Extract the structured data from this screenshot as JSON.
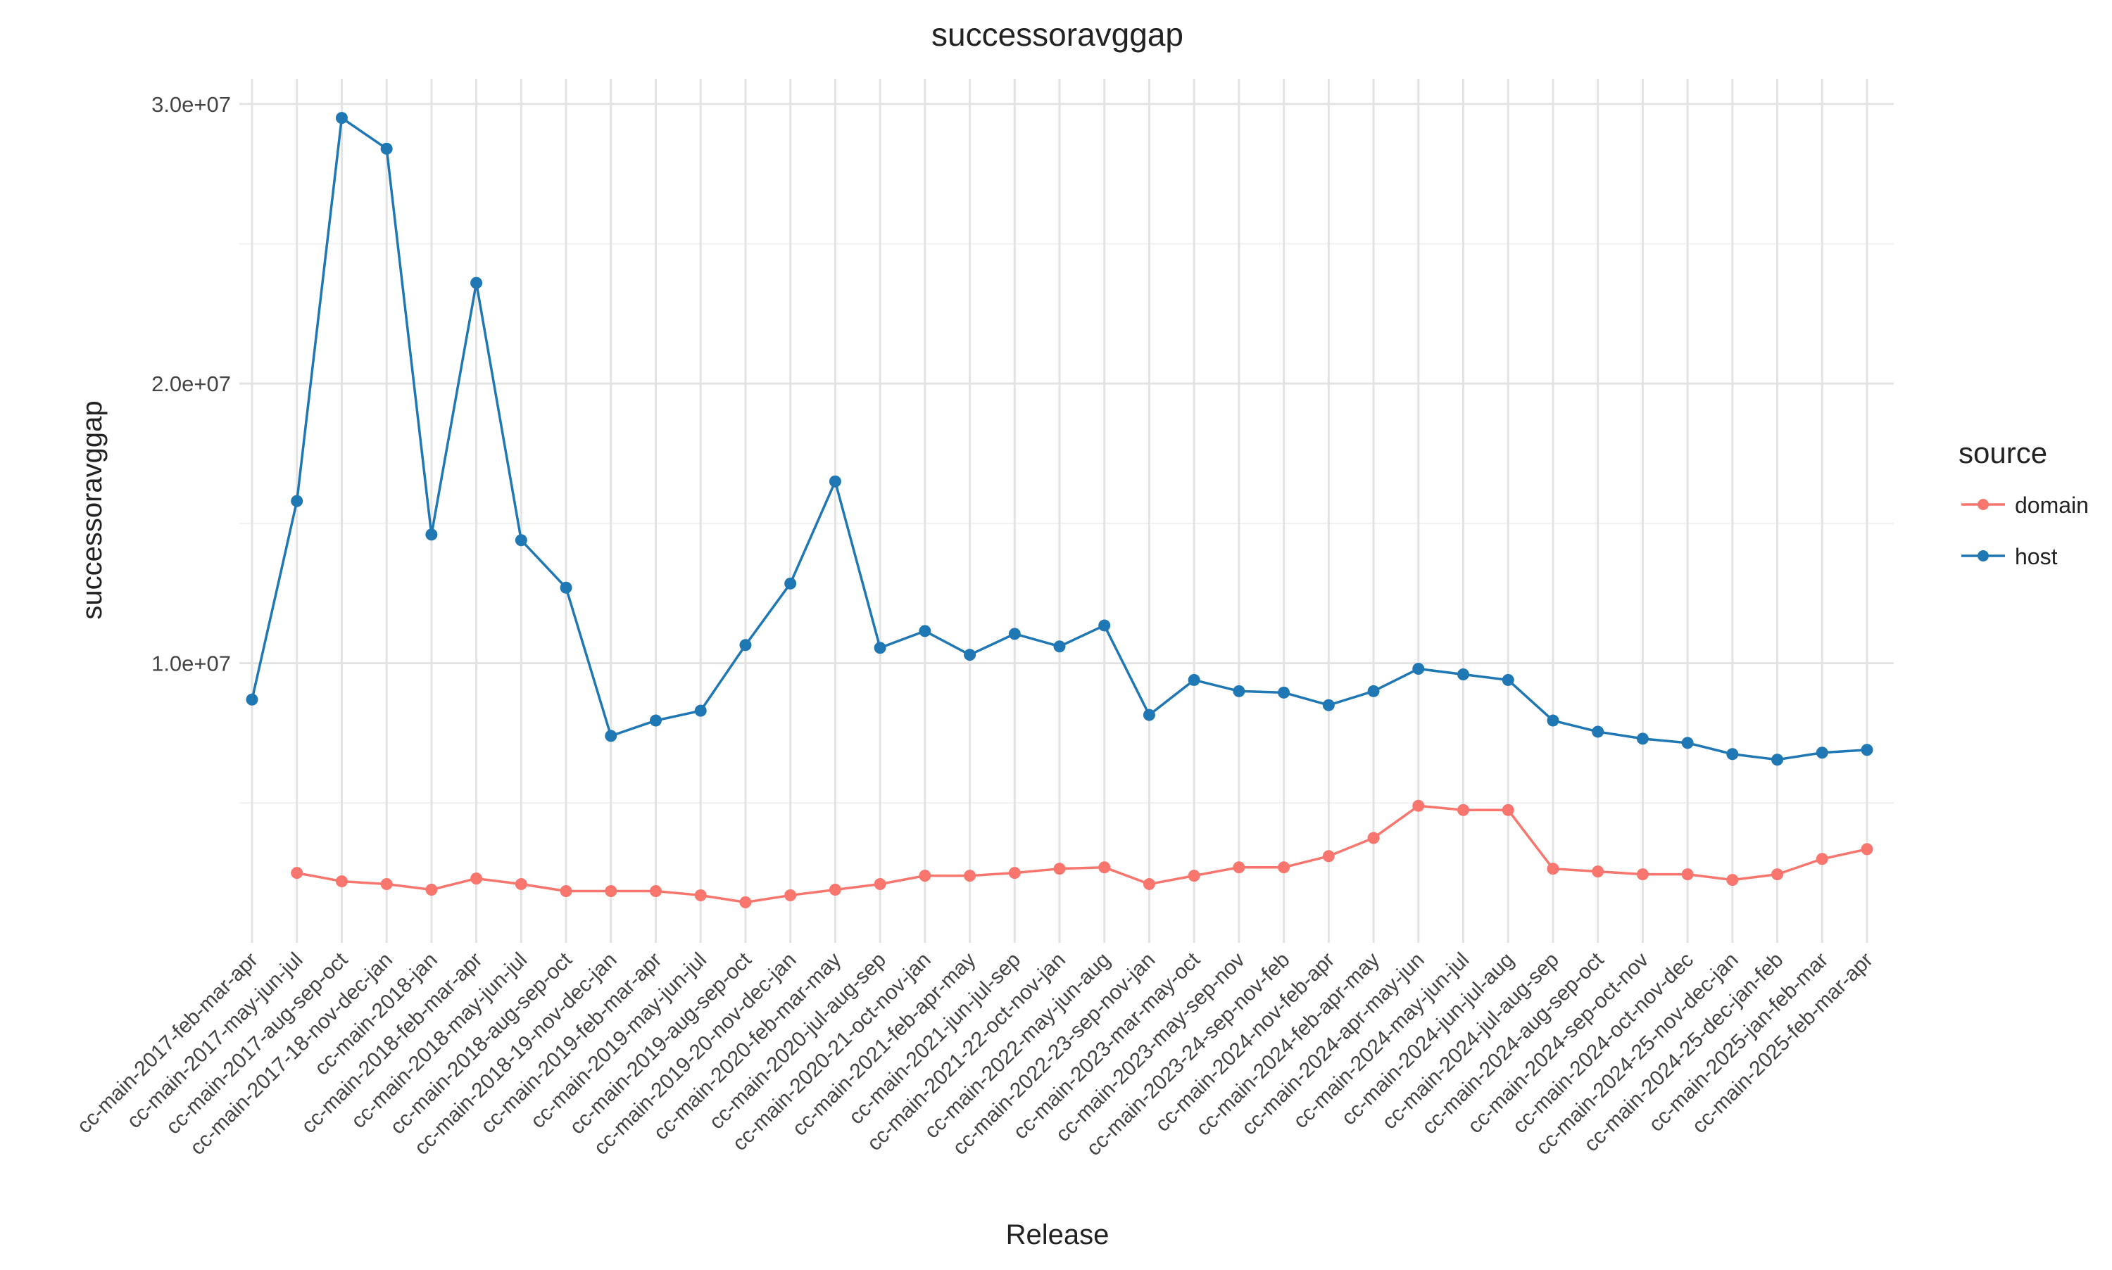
{
  "chart_data": {
    "type": "line",
    "title": "successoravggap",
    "xlabel": "Release",
    "ylabel": "successoravggap",
    "ylim": [
      0,
      30900000
    ],
    "yticks": [
      10000000,
      20000000,
      30000000
    ],
    "ytick_labels": [
      "1.0e+07",
      "2.0e+07",
      "3.0e+07"
    ],
    "grid": true,
    "legend": {
      "title": "source",
      "position": "right",
      "entries": [
        "domain",
        "host"
      ]
    },
    "categories": [
      "cc-main-2017-feb-mar-apr",
      "cc-main-2017-may-jun-jul",
      "cc-main-2017-aug-sep-oct",
      "cc-main-2017-18-nov-dec-jan",
      "cc-main-2018-jan",
      "cc-main-2018-feb-mar-apr",
      "cc-main-2018-may-jun-jul",
      "cc-main-2018-aug-sep-oct",
      "cc-main-2018-19-nov-dec-jan",
      "cc-main-2019-feb-mar-apr",
      "cc-main-2019-may-jun-jul",
      "cc-main-2019-aug-sep-oct",
      "cc-main-2019-20-nov-dec-jan",
      "cc-main-2020-feb-mar-may",
      "cc-main-2020-jul-aug-sep",
      "cc-main-2020-21-oct-nov-jan",
      "cc-main-2021-feb-apr-may",
      "cc-main-2021-jun-jul-sep",
      "cc-main-2021-22-oct-nov-jan",
      "cc-main-2022-may-jun-aug",
      "cc-main-2022-23-sep-nov-jan",
      "cc-main-2023-mar-may-oct",
      "cc-main-2023-may-sep-nov",
      "cc-main-2023-24-sep-nov-feb",
      "cc-main-2024-nov-feb-apr",
      "cc-main-2024-feb-apr-may",
      "cc-main-2024-apr-may-jun",
      "cc-main-2024-may-jun-jul",
      "cc-main-2024-jun-jul-aug",
      "cc-main-2024-jul-aug-sep",
      "cc-main-2024-aug-sep-oct",
      "cc-main-2024-sep-oct-nov",
      "cc-main-2024-oct-nov-dec",
      "cc-main-2024-25-nov-dec-jan",
      "cc-main-2024-25-dec-jan-feb",
      "cc-main-2025-jan-feb-mar",
      "cc-main-2025-feb-mar-apr"
    ],
    "series": [
      {
        "name": "domain",
        "color": "#f8766d",
        "values": [
          null,
          2500000,
          2200000,
          2100000,
          1900000,
          2300000,
          2100000,
          1850000,
          1850000,
          1850000,
          1700000,
          1450000,
          1700000,
          1900000,
          2100000,
          2400000,
          2400000,
          2500000,
          2650000,
          2700000,
          2100000,
          2400000,
          2700000,
          2700000,
          3100000,
          3750000,
          4900000,
          4750000,
          4750000,
          2650000,
          2550000,
          2450000,
          2450000,
          2250000,
          2450000,
          3000000,
          3350000
        ]
      },
      {
        "name": "host",
        "color": "#1f77b4",
        "values": [
          8700000,
          15800000,
          29500000,
          28400000,
          14600000,
          23600000,
          14400000,
          12700000,
          7400000,
          7950000,
          8300000,
          10650000,
          12850000,
          16500000,
          10550000,
          11150000,
          10300000,
          11050000,
          10600000,
          11350000,
          8150000,
          9400000,
          9000000,
          8950000,
          8500000,
          9000000,
          9800000,
          9600000,
          9400000,
          7950000,
          7550000,
          7300000,
          7150000,
          6750000,
          6550000,
          6800000,
          6900000
        ]
      }
    ]
  }
}
